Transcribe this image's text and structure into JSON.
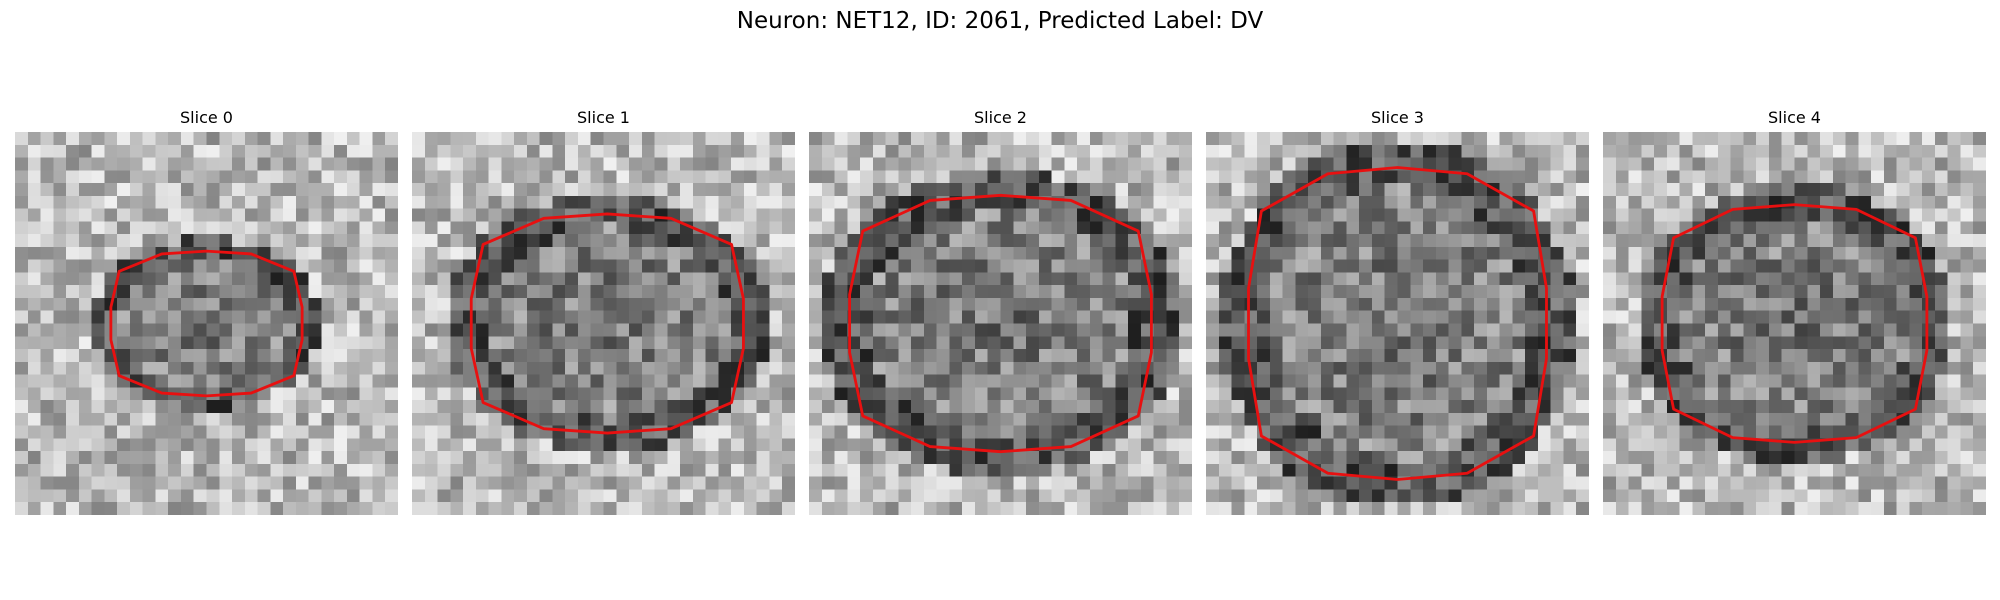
{
  "title": "Neuron: NET12, ID: 2061, Predicted Label: DV",
  "contour_color": "#e81010",
  "slices": [
    {
      "label": "Slice 0",
      "contour_scale": [
        0.52,
        0.39
      ],
      "center": [
        0.5,
        0.5
      ]
    },
    {
      "label": "Slice 1",
      "contour_scale": [
        0.74,
        0.59
      ],
      "center": [
        0.51,
        0.5
      ]
    },
    {
      "label": "Slice 2",
      "contour_scale": [
        0.82,
        0.69
      ],
      "center": [
        0.5,
        0.5
      ]
    },
    {
      "label": "Slice 3",
      "contour_scale": [
        0.81,
        0.84
      ],
      "center": [
        0.5,
        0.5
      ]
    },
    {
      "label": "Slice 4",
      "contour_scale": [
        0.72,
        0.64
      ],
      "center": [
        0.5,
        0.5
      ]
    }
  ]
}
